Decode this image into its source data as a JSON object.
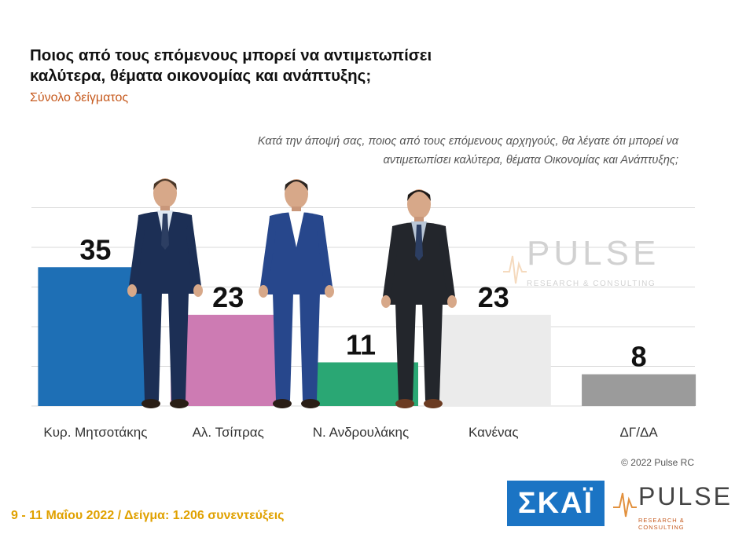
{
  "header": {
    "title_line1": "Ποιος από τους επόμενους μπορεί να αντιμετωπίσει",
    "title_line2": "καλύτερα, θέματα οικονομίας και ανάπτυξης;",
    "subtitle": "Σύνολο δείγματος",
    "question_line1": "Κατά την άποψή σας, ποιος  από τους επόμενους αρχηγούς, θα λέγατε ότι μπορεί να",
    "question_line2": "αντιμετωπίσει καλύτερα, θέματα Οικονομίας και Ανάπτυξης;"
  },
  "chart_data": {
    "type": "bar",
    "categories": [
      "Κυρ. Μητσοτάκης",
      "Αλ. Τσίπρας",
      "Ν. Ανδρουλάκης",
      "Κανένας",
      "ΔΓ/ΔΑ"
    ],
    "values": [
      35,
      23,
      11,
      23,
      8
    ],
    "colors": [
      "#1e6fb5",
      "#cd7bb3",
      "#2aa774",
      "#ebebeb",
      "#9b9b9b"
    ],
    "ylim": [
      0,
      50
    ],
    "grid": true
  },
  "watermark": {
    "brand": "PULSE",
    "tagline": "RESEARCH & CONSULTING"
  },
  "copyright": "© 2022 Pulse RC",
  "footer": "9 - 11  Μαΐου  2022  /  Δείγμα:  1.206 συνεντεύξεις",
  "logos": {
    "skai": "ΣΚΑΪ",
    "pulse": "PULSE",
    "pulse_tagline": "RESEARCH & CONSULTING"
  }
}
